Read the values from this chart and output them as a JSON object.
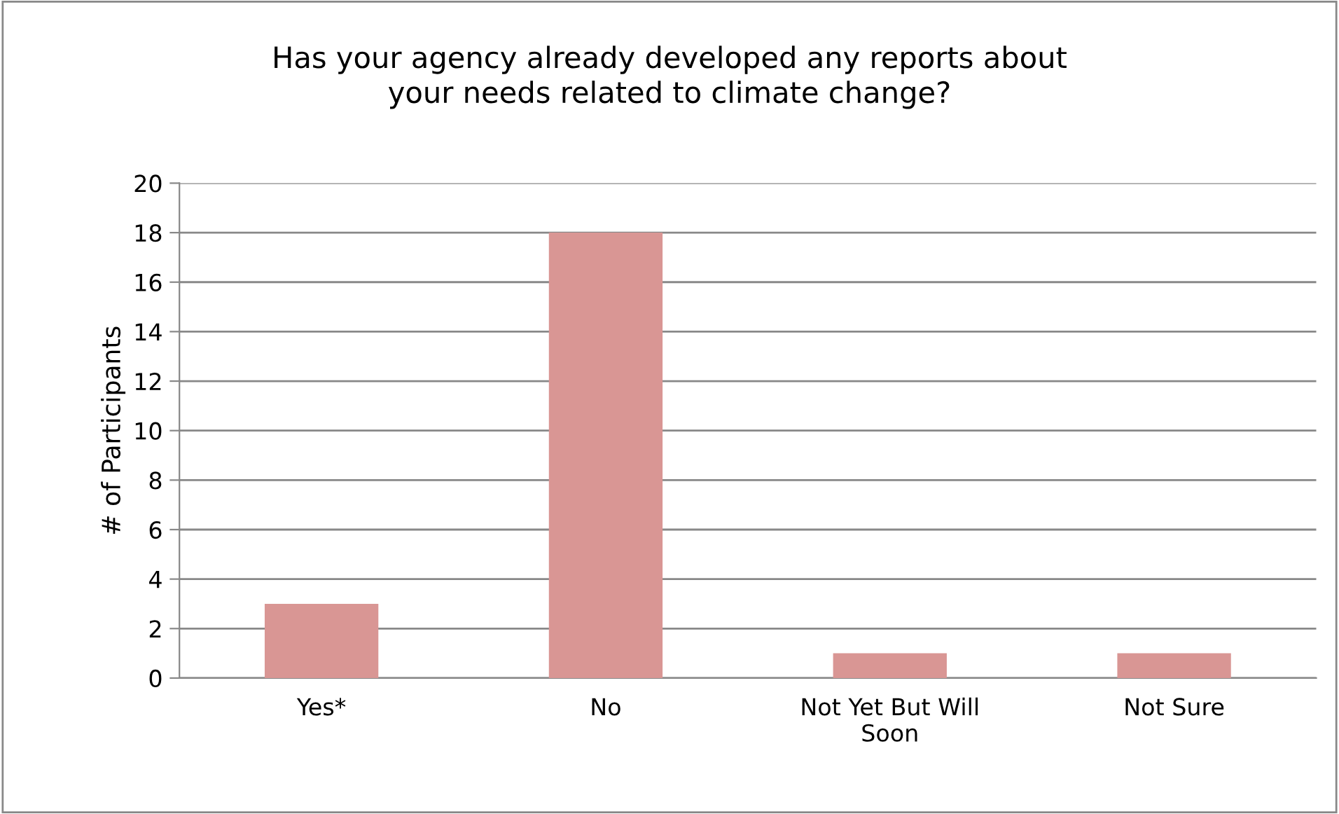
{
  "chart_data": {
    "type": "bar",
    "title": "Has your agency already developed any reports about your needs related to climate change?",
    "ylabel": "# of Participants",
    "categories": [
      "Yes*",
      "No",
      "Not Yet But Will Soon",
      "Not Sure"
    ],
    "values": [
      3,
      18,
      1,
      1
    ],
    "color": "#d99694",
    "ylim": [
      0,
      20
    ],
    "yticks": [
      0,
      2,
      4,
      6,
      8,
      10,
      12,
      14,
      16,
      18,
      20
    ],
    "grid": "y",
    "legend": false
  }
}
